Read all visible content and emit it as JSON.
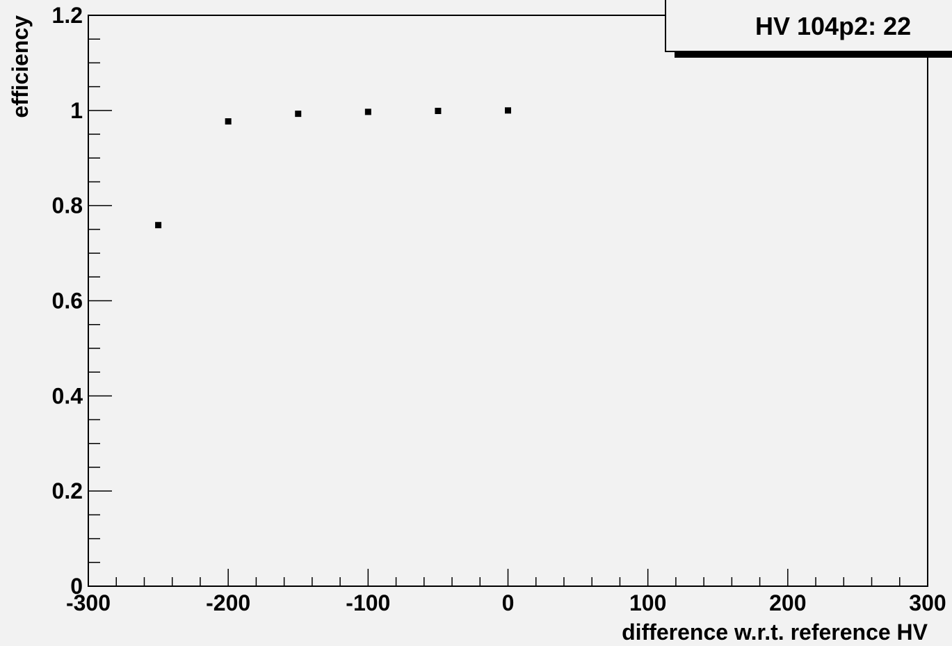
{
  "chart_data": {
    "type": "scatter",
    "title": "HV 104p2: 22",
    "xlabel": "difference w.r.t. reference HV",
    "ylabel": "efficiency",
    "xlim": [
      -300,
      300
    ],
    "ylim": [
      0,
      1.2
    ],
    "x_major_ticks": [
      -300,
      -200,
      -100,
      0,
      100,
      200,
      300
    ],
    "x_tick_labels": [
      "-300",
      "-200",
      "-100",
      "0",
      "100",
      "200",
      "300"
    ],
    "y_major_ticks": [
      0,
      0.2,
      0.4,
      0.6,
      0.8,
      1,
      1.2
    ],
    "y_tick_labels": [
      "0",
      "0.2",
      "0.4",
      "0.6",
      "0.8",
      "1",
      "1.2"
    ],
    "grid": false,
    "legend": "none",
    "series": [
      {
        "x": [
          -250,
          -200,
          -150,
          -100,
          -50,
          0
        ],
        "y": [
          0.759,
          0.977,
          0.993,
          0.997,
          0.999,
          1.0
        ],
        "color": "#000000"
      }
    ]
  }
}
